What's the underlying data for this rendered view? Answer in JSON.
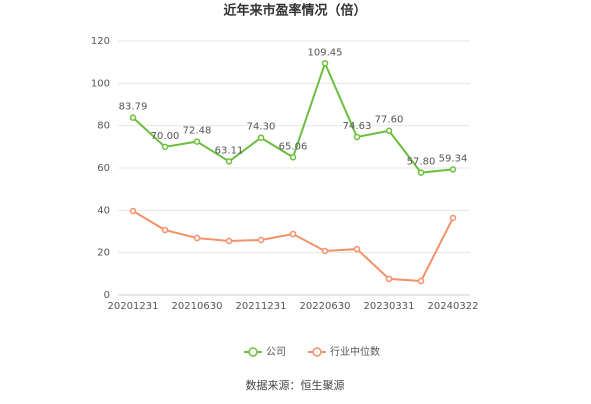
{
  "chart_data": {
    "type": "line",
    "title": "近年来市盈率情况（倍）",
    "source": "数据来源：恒生聚源",
    "categories": [
      "20201231",
      null,
      "20210630",
      null,
      "20211231",
      null,
      "20220630",
      null,
      "20230331",
      null,
      "20240322"
    ],
    "series": [
      {
        "name": "公司",
        "color": "#6cbf3e",
        "values": [
          83.79,
          70.0,
          72.48,
          63.11,
          74.3,
          65.06,
          109.45,
          74.63,
          77.6,
          57.8,
          59.34
        ],
        "value_labels": [
          "83.79",
          "70.00",
          "72.48",
          "63.11",
          "74.30",
          "65.06",
          "109.45",
          "74.63",
          "77.60",
          "57.80",
          "59.34"
        ]
      },
      {
        "name": "行业中位数",
        "color": "#f3916b",
        "values": [
          39.7,
          30.7,
          26.9,
          25.5,
          26.0,
          28.8,
          20.8,
          21.7,
          7.6,
          6.6,
          36.4
        ]
      }
    ],
    "ylim": [
      0,
      120
    ],
    "yticks": [
      0,
      20,
      40,
      60,
      80,
      100,
      120
    ],
    "grid": true,
    "legend": "bottom"
  }
}
